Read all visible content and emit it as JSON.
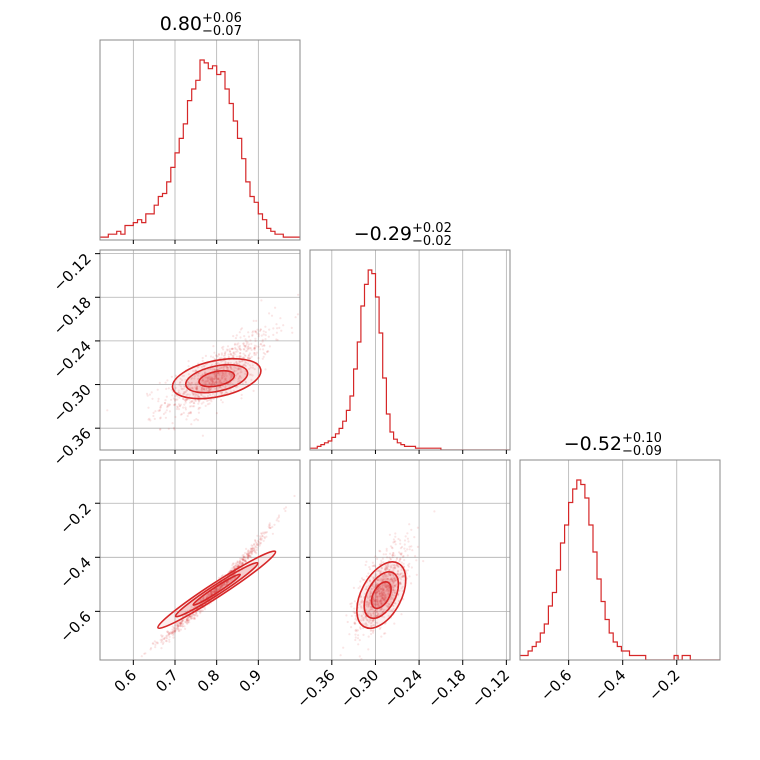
{
  "chart_data": {
    "type": "corner",
    "color": "#d62728",
    "parameters": [
      {
        "title_main": "0.80",
        "title_plus": "+0.06",
        "title_minus": "−0.07",
        "range": [
          0.52,
          1.0
        ],
        "ticks": [
          "0.6",
          "0.7",
          "0.8",
          "0.9"
        ],
        "tick_values": [
          0.6,
          0.7,
          0.8,
          0.9
        ]
      },
      {
        "title_main": "−0.29",
        "title_plus": "+0.02",
        "title_minus": "−0.02",
        "range": [
          -0.39,
          -0.115
        ],
        "ticks": [
          "−0.36",
          "−0.30",
          "−0.24",
          "−0.18",
          "−0.12"
        ],
        "tick_values": [
          -0.36,
          -0.3,
          -0.24,
          -0.18,
          -0.12
        ]
      },
      {
        "title_main": "−0.52",
        "title_plus": "+0.10",
        "title_minus": "−0.09",
        "range": [
          -0.78,
          -0.04
        ],
        "ticks": [
          "−0.6",
          "−0.4",
          "−0.2"
        ],
        "tick_values": [
          -0.6,
          -0.4,
          -0.2
        ]
      }
    ],
    "histograms": [
      {
        "param": 0,
        "bin_start": 0.52,
        "bin_width": 0.01,
        "counts": [
          1,
          1,
          2,
          2,
          3,
          2,
          5,
          5,
          6,
          7,
          6,
          9,
          9,
          12,
          15,
          16,
          20,
          25,
          30,
          35,
          40,
          48,
          52,
          55,
          62,
          61,
          59,
          60,
          57,
          58,
          52,
          47,
          41,
          35,
          28,
          20,
          15,
          13,
          9,
          7,
          4,
          3,
          2,
          2,
          1,
          1,
          1,
          1
        ]
      },
      {
        "param": 1,
        "bin_start": -0.39,
        "bin_width": 0.005,
        "counts": [
          1,
          1,
          2,
          3,
          4,
          5,
          7,
          9,
          12,
          16,
          22,
          30,
          45,
          60,
          80,
          92,
          100,
          98,
          85,
          65,
          40,
          20,
          10,
          6,
          4,
          3,
          2,
          2,
          2,
          1,
          1,
          1,
          1,
          1,
          1,
          1,
          0,
          0,
          0,
          0,
          0,
          0,
          0,
          0,
          0,
          0,
          0,
          0,
          0,
          0,
          0,
          0,
          0,
          0,
          0,
          0
        ]
      },
      {
        "param": 2,
        "bin_start": -0.78,
        "bin_width": 0.015,
        "counts": [
          1,
          1,
          2,
          3,
          4,
          6,
          8,
          12,
          15,
          20,
          26,
          30,
          35,
          38,
          40,
          39,
          36,
          30,
          24,
          18,
          13,
          9,
          6,
          4,
          3,
          2,
          2,
          1,
          1,
          1,
          1,
          0,
          0,
          0,
          0,
          0,
          0,
          0,
          1,
          0,
          1,
          1,
          0,
          0,
          0,
          0,
          0,
          0,
          0,
          0
        ]
      }
    ],
    "pairs": [
      {
        "x_param": 0,
        "y_param": 1,
        "relation": "y = -0.29 + 0.35*(x-0.80) + 0.55*(x-0.80)^2",
        "scatter": "sparse point cloud"
      },
      {
        "x_param": 0,
        "y_param": 2,
        "relation": "y = -0.52 + 1.6*(x-0.80) + 1.4*(x-0.80)^2",
        "scatter": "narrow curved band"
      },
      {
        "x_param": 1,
        "y_param": 2,
        "relation": "y increases with x",
        "scatter": "sparse point cloud"
      }
    ],
    "grid": true
  }
}
